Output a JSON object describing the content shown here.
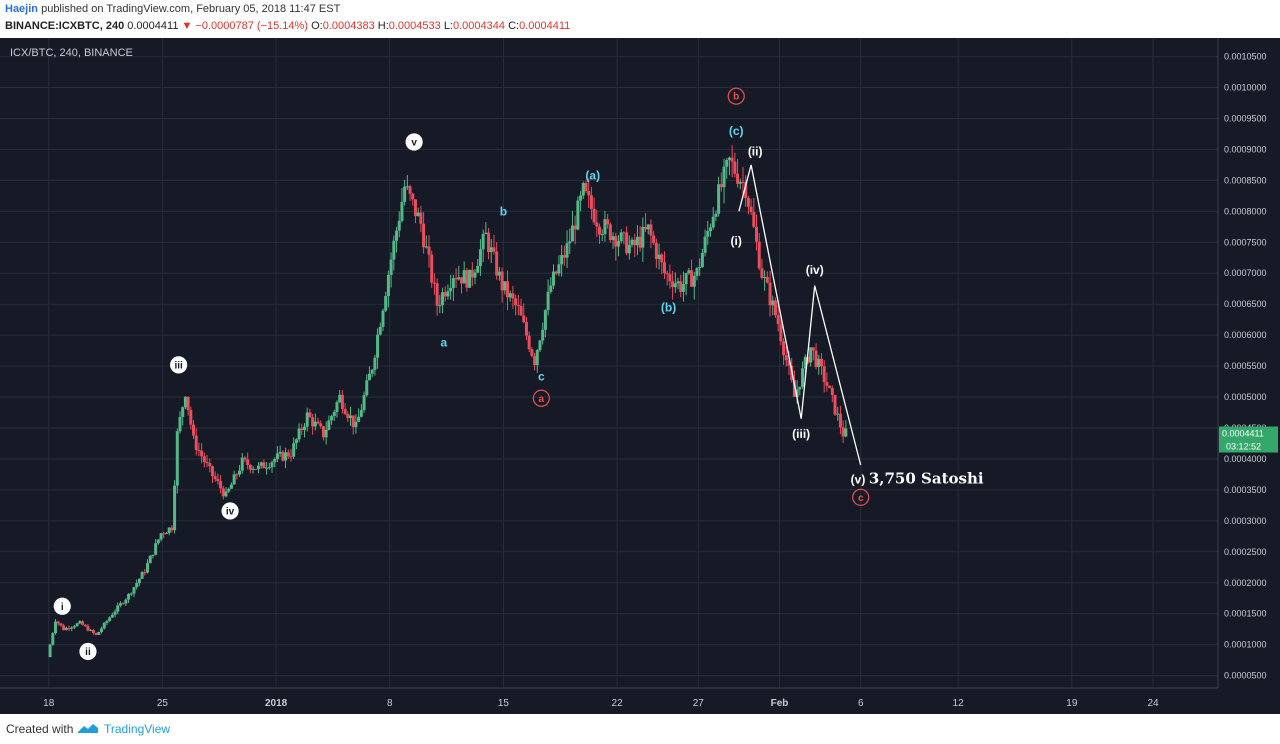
{
  "header": {
    "author": "Haejin",
    "published_text": "published on TradingView.com, February 05, 2018 11:47 EST",
    "symbol": "BINANCE:ICXBTC, 240",
    "last": "0.0004411",
    "arrow": "▼",
    "change": "−0.0000787 (−15.14%)",
    "o_label": "O:",
    "o_value": "0.0004383",
    "h_label": "H:",
    "h_value": "0.0004533",
    "l_label": "L:",
    "l_value": "0.0004344",
    "c_label": "C:",
    "c_value": "0.0004411"
  },
  "footer": {
    "created_with": "Created with",
    "brand": "TradingView"
  },
  "colors": {
    "background": "#151a26",
    "grid": "#272d3a",
    "up": "#53b987",
    "down": "#eb4d5c",
    "label_white": "#ffffff",
    "label_cyan": "#5fd6f0",
    "label_red": "#ef4f4f",
    "price_tag": "#34a86b"
  },
  "chart_data": {
    "type": "candlestick",
    "pane_title": "ICX/BTC, 240, BINANCE",
    "x_axis": {
      "type": "date",
      "range": [
        "2017-12-15",
        "2018-02-28"
      ],
      "ticks": [
        {
          "date": "2017-12-18",
          "label": "18"
        },
        {
          "date": "2017-12-25",
          "label": "25"
        },
        {
          "date": "2018-01-01",
          "label": "2018"
        },
        {
          "date": "2018-01-08",
          "label": "8"
        },
        {
          "date": "2018-01-15",
          "label": "15"
        },
        {
          "date": "2018-01-22",
          "label": "22"
        },
        {
          "date": "2018-01-27",
          "label": "27"
        },
        {
          "date": "2018-02-01",
          "label": "Feb"
        },
        {
          "date": "2018-02-06",
          "label": "6"
        },
        {
          "date": "2018-02-12",
          "label": "12"
        },
        {
          "date": "2018-02-19",
          "label": "19"
        },
        {
          "date": "2018-02-24",
          "label": "24"
        }
      ]
    },
    "y_axis": {
      "range": [
        3e-05,
        0.00108
      ],
      "ticks": [
        "0.0000500",
        "0.0001000",
        "0.0001500",
        "0.0002000",
        "0.0002500",
        "0.0003000",
        "0.0003500",
        "0.0004000",
        "0.0004500",
        "0.0005000",
        "0.0005500",
        "0.0006000",
        "0.0006500",
        "0.0007000",
        "0.0007500",
        "0.0008000",
        "0.0008500",
        "0.0009000",
        "0.0009500",
        "0.0010000",
        "0.0010500"
      ]
    },
    "price_tag": {
      "value": 0.0004411,
      "label": "0.0004411",
      "countdown": "03:12:52"
    },
    "grid": true,
    "price_path": [
      {
        "date": "2017-12-18",
        "price": 8e-05
      },
      {
        "date": "2017-12-18T12:00",
        "price": 0.00014
      },
      {
        "date": "2017-12-19",
        "price": 0.000125
      },
      {
        "date": "2017-12-20",
        "price": 0.000135
      },
      {
        "date": "2017-12-21",
        "price": 0.000115
      },
      {
        "date": "2017-12-22",
        "price": 0.00015
      },
      {
        "date": "2017-12-23",
        "price": 0.00018
      },
      {
        "date": "2017-12-24",
        "price": 0.00022
      },
      {
        "date": "2017-12-25",
        "price": 0.00028
      },
      {
        "date": "2017-12-25T16:00",
        "price": 0.00029
      },
      {
        "date": "2017-12-26",
        "price": 0.00044
      },
      {
        "date": "2017-12-26T12:00",
        "price": 0.00051
      },
      {
        "date": "2017-12-27",
        "price": 0.00043
      },
      {
        "date": "2017-12-28",
        "price": 0.00038
      },
      {
        "date": "2017-12-29",
        "price": 0.00034
      },
      {
        "date": "2017-12-30",
        "price": 0.000395
      },
      {
        "date": "2017-12-31",
        "price": 0.000385
      },
      {
        "date": "2018-01-01",
        "price": 0.0004
      },
      {
        "date": "2018-01-02",
        "price": 0.00041
      },
      {
        "date": "2018-01-03",
        "price": 0.00047
      },
      {
        "date": "2018-01-04",
        "price": 0.00044
      },
      {
        "date": "2018-01-05",
        "price": 0.0005
      },
      {
        "date": "2018-01-06",
        "price": 0.00045
      },
      {
        "date": "2018-01-07",
        "price": 0.00055
      },
      {
        "date": "2018-01-08",
        "price": 0.0007
      },
      {
        "date": "2018-01-09",
        "price": 0.00084
      },
      {
        "date": "2018-01-10",
        "price": 0.00078
      },
      {
        "date": "2018-01-11",
        "price": 0.00065
      },
      {
        "date": "2018-01-12",
        "price": 0.0007
      },
      {
        "date": "2018-01-13",
        "price": 0.00069
      },
      {
        "date": "2018-01-14",
        "price": 0.00076
      },
      {
        "date": "2018-01-15",
        "price": 0.00068
      },
      {
        "date": "2018-01-16",
        "price": 0.00064
      },
      {
        "date": "2018-01-17",
        "price": 0.00056
      },
      {
        "date": "2018-01-18",
        "price": 0.00068
      },
      {
        "date": "2018-01-19",
        "price": 0.00074
      },
      {
        "date": "2018-01-20",
        "price": 0.00083
      },
      {
        "date": "2018-01-21",
        "price": 0.00078
      },
      {
        "date": "2018-01-22",
        "price": 0.00076
      },
      {
        "date": "2018-01-23",
        "price": 0.00074
      },
      {
        "date": "2018-01-24",
        "price": 0.00077
      },
      {
        "date": "2018-01-25",
        "price": 0.0007
      },
      {
        "date": "2018-01-26",
        "price": 0.00068
      },
      {
        "date": "2018-01-27",
        "price": 0.0007
      },
      {
        "date": "2018-01-28",
        "price": 0.0008
      },
      {
        "date": "2018-01-29",
        "price": 0.00088
      },
      {
        "date": "2018-01-30",
        "price": 0.00084
      },
      {
        "date": "2018-01-31",
        "price": 0.0007
      },
      {
        "date": "2018-02-01",
        "price": 0.00062
      },
      {
        "date": "2018-02-02",
        "price": 0.0005
      },
      {
        "date": "2018-02-03",
        "price": 0.00058
      },
      {
        "date": "2018-02-04",
        "price": 0.00052
      },
      {
        "date": "2018-02-05",
        "price": 0.000441
      }
    ],
    "wave_lines": [
      [
        {
          "date": "2018-01-29T12:00",
          "price": 0.0008
        },
        {
          "date": "2018-01-30T06:00",
          "price": 0.000875
        },
        {
          "date": "2018-02-02T08:00",
          "price": 0.000465
        },
        {
          "date": "2018-02-03T04:00",
          "price": 0.00068
        },
        {
          "date": "2018-02-06",
          "price": 0.00039
        }
      ]
    ],
    "annotations": [
      {
        "text": "i",
        "style": "circle-white",
        "date": "2017-12-18T20:00",
        "price": 0.000162
      },
      {
        "text": "ii",
        "style": "circle-white",
        "date": "2017-12-20T10:00",
        "price": 8.9e-05
      },
      {
        "text": "iii",
        "style": "circle-white",
        "date": "2017-12-26",
        "price": 0.000552
      },
      {
        "text": "iv",
        "style": "circle-white",
        "date": "2017-12-29T04:00",
        "price": 0.000316
      },
      {
        "text": "v",
        "style": "circle-white",
        "date": "2018-01-09T12:00",
        "price": 0.000912
      },
      {
        "text": "a",
        "style": "plain-cyan",
        "date": "2018-01-11T08:00",
        "price": 0.000588
      },
      {
        "text": "b",
        "style": "plain-cyan",
        "date": "2018-01-15",
        "price": 0.0008
      },
      {
        "text": "c",
        "style": "plain-cyan",
        "date": "2018-01-17T08:00",
        "price": 0.000533
      },
      {
        "text": "a",
        "style": "circle-red",
        "date": "2018-01-17T08:00",
        "price": 0.000498
      },
      {
        "text": "(a)",
        "style": "plain-cyan",
        "date": "2018-01-20T12:00",
        "price": 0.000858
      },
      {
        "text": "(b)",
        "style": "plain-cyan",
        "date": "2018-01-25T04:00",
        "price": 0.000645
      },
      {
        "text": "(c)",
        "style": "plain-cyan",
        "date": "2018-01-29T08:00",
        "price": 0.00093
      },
      {
        "text": "b",
        "style": "circle-red",
        "date": "2018-01-29T08:00",
        "price": 0.000986
      },
      {
        "text": "(ii)",
        "style": "plain-white",
        "date": "2018-01-30T12:00",
        "price": 0.000897
      },
      {
        "text": "(i)",
        "style": "plain-white",
        "date": "2018-01-29T08:00",
        "price": 0.000752
      },
      {
        "text": "(iv)",
        "style": "plain-white",
        "date": "2018-02-03T04:00",
        "price": 0.000705
      },
      {
        "text": "(iii)",
        "style": "plain-white",
        "date": "2018-02-02T08:00",
        "price": 0.00044
      },
      {
        "text": "(v)",
        "style": "plain-white",
        "date": "2018-02-05T20:00",
        "price": 0.000367
      },
      {
        "text": "c",
        "style": "circle-red",
        "date": "2018-02-06",
        "price": 0.000338
      },
      {
        "text": "3,750 Satoshi",
        "style": "big-white",
        "date": "2018-02-06T12:00",
        "price": 0.000367
      }
    ]
  }
}
